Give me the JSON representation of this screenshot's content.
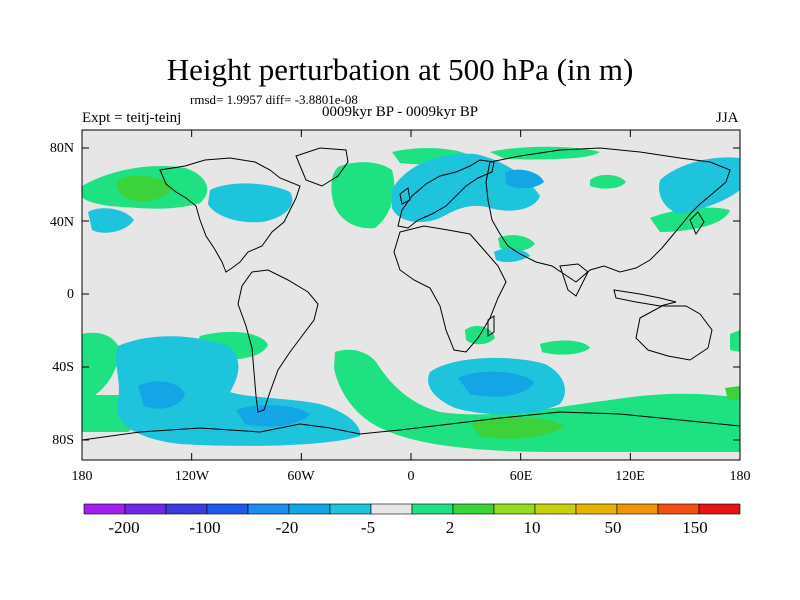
{
  "title": "Height perturbation at 500 hPa (in m)",
  "stats_line": "rmsd= 1.9957 diff= -3.8801e-08",
  "left_label": "Expt = teitj-teinj",
  "center_label": "0009kyr BP - 0009kyr BP",
  "right_label": "JJA",
  "lat_labels": [
    "80N",
    "40N",
    "0",
    "40S",
    "80S"
  ],
  "lon_labels": [
    "180",
    "120W",
    "60W",
    "0",
    "60E",
    "120E",
    "180"
  ],
  "colorbar": {
    "colors": [
      "#a020f0",
      "#6e28e0",
      "#3c3cdc",
      "#1e5ae6",
      "#1e8cf0",
      "#14a5e6",
      "#1ec3dc",
      "#e6e6e6",
      "#1ee182",
      "#3cd23c",
      "#96dc1e",
      "#c8d20a",
      "#e6b400",
      "#f0960a",
      "#f05014",
      "#e61414"
    ],
    "tick_labels": [
      "-200",
      "-100",
      "-20",
      "-5",
      "2",
      "10",
      "50",
      "150"
    ]
  },
  "fill_colors": {
    "background": "#e6e6e6",
    "negative": "#1ec3dc",
    "negative_strong": "#14a5e6",
    "positive": "#1ee182",
    "positive_strong": "#3cd23c"
  }
}
